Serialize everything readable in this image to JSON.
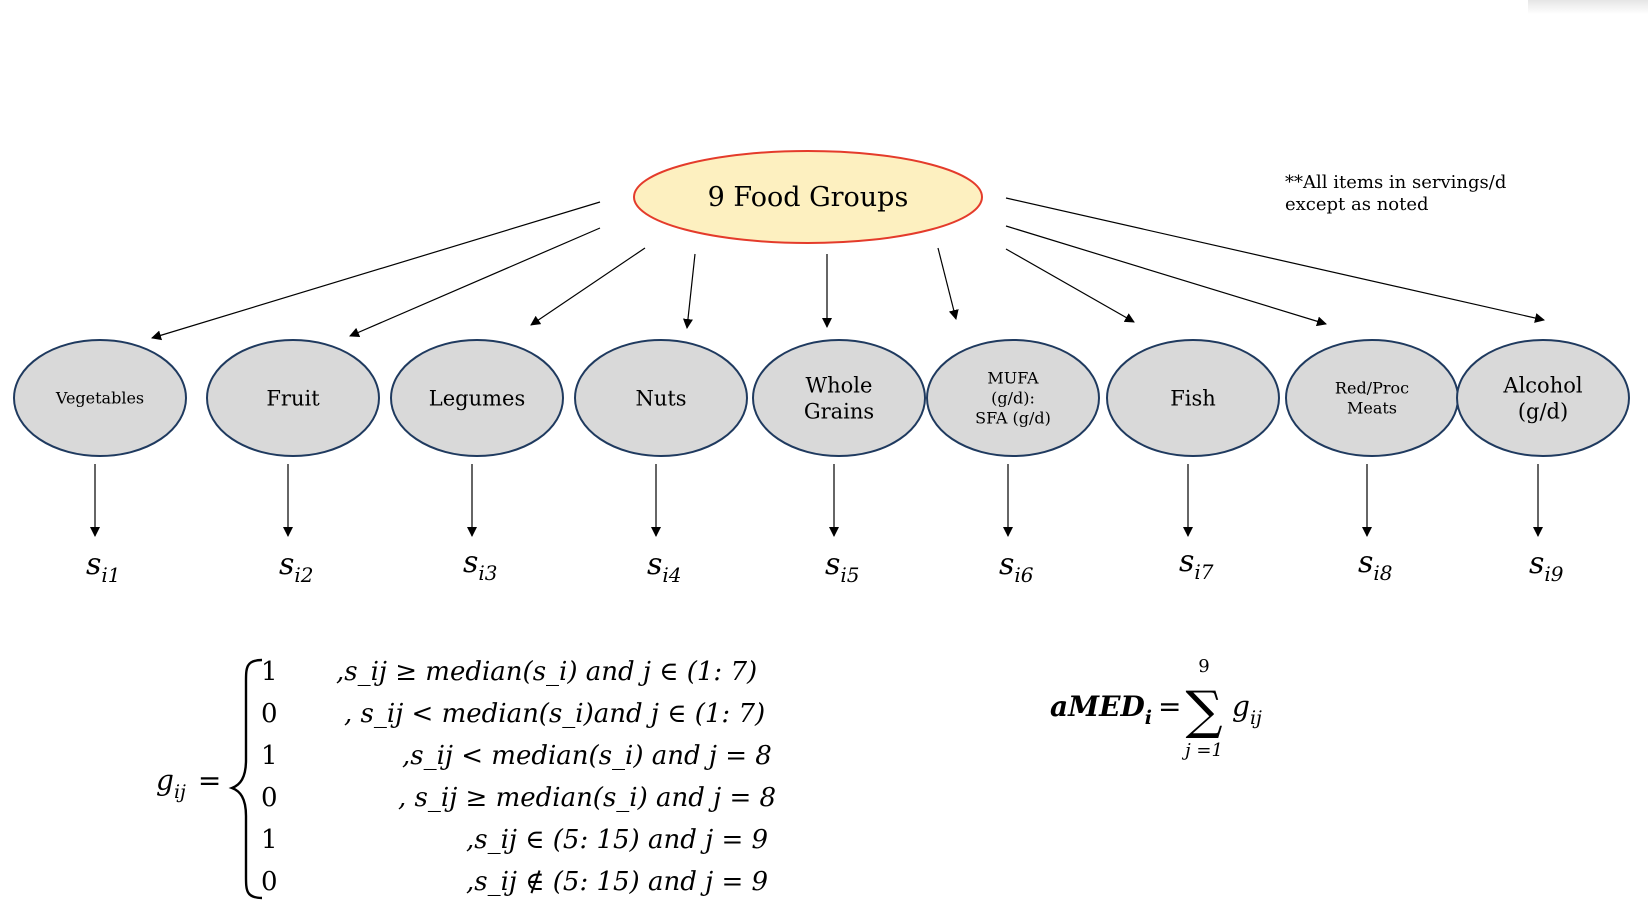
{
  "root": {
    "label": "9 Food Groups"
  },
  "note": {
    "line1": "**All items in servings/d",
    "line2": "except as noted"
  },
  "groups": [
    {
      "lines": [
        "Vegetables"
      ],
      "small": true,
      "score_sub": "i1"
    },
    {
      "lines": [
        "Fruit"
      ],
      "small": false,
      "score_sub": "i2"
    },
    {
      "lines": [
        "Legumes"
      ],
      "small": false,
      "score_sub": "i3"
    },
    {
      "lines": [
        "Nuts"
      ],
      "small": false,
      "score_sub": "i4"
    },
    {
      "lines": [
        "Whole",
        "Grains"
      ],
      "small": false,
      "score_sub": "i5"
    },
    {
      "lines": [
        "MUFA",
        "(g/d):",
        "SFA (g/d)"
      ],
      "small": true,
      "score_sub": "i6"
    },
    {
      "lines": [
        "Fish"
      ],
      "small": false,
      "score_sub": "i7"
    },
    {
      "lines": [
        "Red/Proc",
        "Meats"
      ],
      "small": true,
      "score_sub": "i8"
    },
    {
      "lines": [
        "Alcohol",
        "(g/d)"
      ],
      "small": false,
      "score_sub": "i9"
    }
  ],
  "score_symbol": "s",
  "formula_g": {
    "lhs": "g",
    "lhs_sub": "ij",
    "cases": [
      {
        "value": "1",
        "condition": ",s_ij ≥ median(s_i) and j ∈ (1: 7)"
      },
      {
        "value": "0",
        "condition": ", s_ij < median(s_i)and j ∈ (1: 7)"
      },
      {
        "value": "1",
        "condition": ",s_ij < median(s_i) and j = 8"
      },
      {
        "value": "0",
        "condition": ", s_ij ≥ median(s_i) and j = 8"
      },
      {
        "value": "1",
        "condition": ",s_ij ∈ (5: 15) and j = 9"
      },
      {
        "value": "0",
        "condition": ",s_ij ∉ (5: 15) and j = 9"
      }
    ]
  },
  "formula_amed": {
    "lhs": "aMED",
    "lhs_sub": "i",
    "sum_upper": "9",
    "sum_lower": "j =1",
    "term": "g",
    "term_sub": "ij"
  },
  "colors": {
    "root_fill": "#fdf0c0",
    "root_stroke": "#e43b2b",
    "node_fill": "#d9d9d9",
    "node_stroke": "#1f3a5f",
    "arrow": "#000000"
  }
}
